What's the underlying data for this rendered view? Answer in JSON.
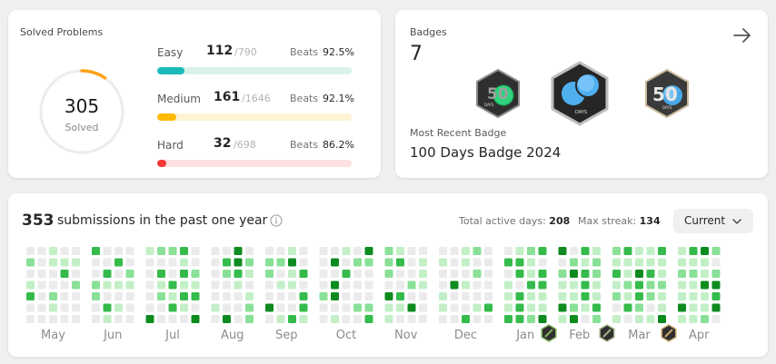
{
  "solved": {
    "title": "Solved Problems",
    "total": "305",
    "total_label": "Solved",
    "progress": 0.096,
    "ring_color": "#ffa116",
    "rows": [
      {
        "name": "Easy",
        "count": "112",
        "total": "/790",
        "beats_label": "Beats",
        "beats": "92.5%",
        "fraction": 0.142,
        "fill_color": "#1cbaba",
        "track_color": "#dbf2ec"
      },
      {
        "name": "Medium",
        "count": "161",
        "total": "/1646",
        "beats_label": "Beats",
        "beats": "92.1%",
        "fraction": 0.098,
        "fill_color": "#ffb800",
        "track_color": "#fff3d6"
      },
      {
        "name": "Hard",
        "count": "32",
        "total": "/698",
        "beats_label": "Beats",
        "beats": "86.2%",
        "fraction": 0.046,
        "fill_color": "#f63737",
        "track_color": "#fde0e0"
      }
    ]
  },
  "badges": {
    "label": "Badges",
    "count": "7",
    "most_recent_label": "Most Recent Badge",
    "most_recent_name": "100 Days Badge 2024",
    "items": [
      {
        "name": "50-days-badge",
        "text": "50",
        "sub": "DAYS",
        "accent": "#2fd27d"
      },
      {
        "name": "100-days-badge",
        "text": "",
        "sub": "DAYS",
        "accent": "#4fb0f0"
      },
      {
        "name": "50-days-badge-2",
        "text": "50",
        "sub": "DAYS",
        "accent": "#48a9e6"
      }
    ]
  },
  "activity": {
    "count": "353",
    "text": "submissions in the past one year",
    "active_days_label": "Total active days:",
    "active_days": "208",
    "max_streak_label": "Max streak:",
    "max_streak": "134",
    "range": "Current",
    "months": [
      "May",
      "Jun",
      "Jul",
      "Aug",
      "Sep",
      "Oct",
      "Nov",
      "Dec",
      "Jan",
      "Feb",
      "Mar",
      "Apr"
    ],
    "level_colors": [
      "#ebebeb",
      "#c3efc7",
      "#89e096",
      "#35bb4b",
      "#0e8b1f"
    ],
    "month_columns": [
      5,
      4,
      5,
      4,
      4,
      5,
      4,
      5,
      4,
      4,
      5,
      4
    ],
    "seed": 353
  }
}
